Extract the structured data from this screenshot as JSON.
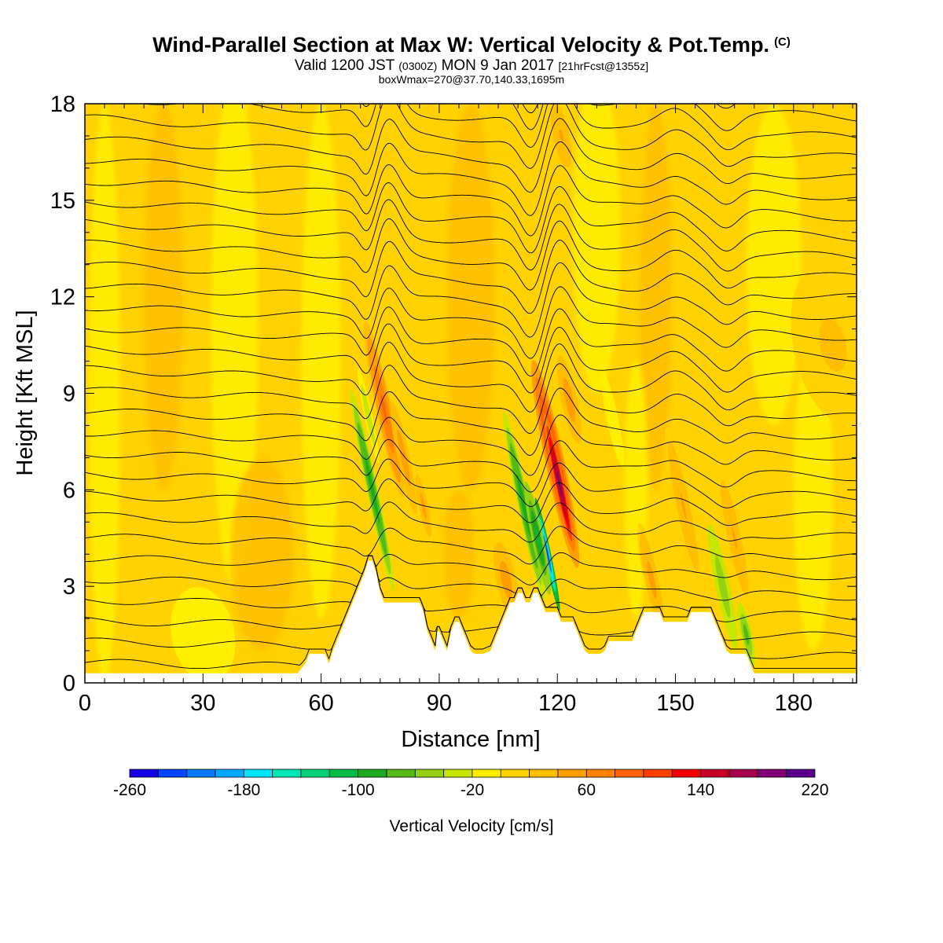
{
  "header": {
    "title": "Wind-Parallel Section at Max W: Vertical Velocity & Pot.Temp.",
    "copyright": "(C)",
    "subtitle_a": "Valid 1200 JST",
    "subtitle_b": "(0300Z)",
    "subtitle_c": "MON 9 Jan 2017",
    "subtitle_d": "[21hrFcst@1355z]",
    "subtitle_line2": "boxWmax=270@37.70,140.33,1695m"
  },
  "chart_data": {
    "type": "heatmap",
    "title": "Wind-Parallel Section at Max W: Vertical Velocity & Pot.Temp.",
    "xlabel": "Distance [nm]",
    "ylabel": "Height [Kft MSL]",
    "xlim": [
      0,
      196
    ],
    "ylim": [
      0,
      18
    ],
    "x_ticks": [
      0,
      30,
      60,
      90,
      120,
      150,
      180
    ],
    "y_ticks": [
      0,
      3,
      6,
      9,
      12,
      15,
      18
    ],
    "colorbar": {
      "label": "Vertical Velocity [cm/s]",
      "tick_labels": [
        "-260",
        "-180",
        "-100",
        "-20",
        "60",
        "140",
        "220"
      ],
      "tick_values": [
        -260,
        -180,
        -100,
        -20,
        60,
        140,
        220
      ],
      "min": -260,
      "max": 220,
      "step": 20,
      "colors": [
        "#1900e6",
        "#0046ff",
        "#0078ff",
        "#00aaff",
        "#00e6ff",
        "#00e6b4",
        "#00d278",
        "#00bb46",
        "#1eaa1e",
        "#55bb14",
        "#96d214",
        "#c8e600",
        "#fff000",
        "#ffd200",
        "#ffbe00",
        "#ffa000",
        "#ff8200",
        "#ff6400",
        "#ff3c00",
        "#f00000",
        "#c80028",
        "#aa0050",
        "#820078",
        "#5a008c"
      ]
    },
    "terrain_profile": [
      [
        0,
        0.3
      ],
      [
        48,
        0.3
      ],
      [
        54,
        0.3
      ],
      [
        56,
        0.6
      ],
      [
        57,
        0.9
      ],
      [
        61,
        0.9
      ],
      [
        62,
        0.6
      ],
      [
        63,
        1.0
      ],
      [
        64,
        1.3
      ],
      [
        65,
        1.6
      ],
      [
        66,
        1.9
      ],
      [
        67,
        2.2
      ],
      [
        68,
        2.5
      ],
      [
        69,
        2.8
      ],
      [
        70,
        3.1
      ],
      [
        71,
        3.4
      ],
      [
        72,
        3.8
      ],
      [
        73,
        3.8
      ],
      [
        74,
        3.4
      ],
      [
        75,
        2.8
      ],
      [
        76,
        2.5
      ],
      [
        85,
        2.5
      ],
      [
        86,
        2.2
      ],
      [
        87,
        1.6
      ],
      [
        88,
        1.3
      ],
      [
        89,
        1.0
      ],
      [
        89.5,
        1.6
      ],
      [
        90,
        1.6
      ],
      [
        91,
        1.3
      ],
      [
        92,
        1.0
      ],
      [
        92.5,
        1.3
      ],
      [
        93,
        1.6
      ],
      [
        94,
        1.9
      ],
      [
        95,
        1.9
      ],
      [
        96,
        1.6
      ],
      [
        97,
        1.3
      ],
      [
        98,
        1.0
      ],
      [
        99,
        0.9
      ],
      [
        100,
        0.9
      ],
      [
        101,
        0.9
      ],
      [
        103,
        1.0
      ],
      [
        104,
        1.3
      ],
      [
        105,
        1.6
      ],
      [
        106,
        1.9
      ],
      [
        107,
        2.2
      ],
      [
        108,
        2.5
      ],
      [
        109,
        2.5
      ],
      [
        110,
        2.8
      ],
      [
        111,
        2.8
      ],
      [
        112,
        2.5
      ],
      [
        113,
        2.5
      ],
      [
        114,
        2.8
      ],
      [
        115,
        2.8
      ],
      [
        116,
        2.5
      ],
      [
        117,
        2.2
      ],
      [
        120,
        2.2
      ],
      [
        121,
        1.9
      ],
      [
        124,
        1.9
      ],
      [
        125,
        1.6
      ],
      [
        126,
        1.3
      ],
      [
        127,
        1.0
      ],
      [
        128,
        0.9
      ],
      [
        131,
        0.9
      ],
      [
        132,
        1.0
      ],
      [
        133,
        1.3
      ],
      [
        139,
        1.3
      ],
      [
        140,
        1.6
      ],
      [
        141,
        1.9
      ],
      [
        142,
        2.2
      ],
      [
        146,
        2.2
      ],
      [
        147,
        1.9
      ],
      [
        153,
        1.9
      ],
      [
        154,
        2.2
      ],
      [
        159,
        2.2
      ],
      [
        160,
        1.9
      ],
      [
        161,
        1.6
      ],
      [
        162,
        1.3
      ],
      [
        163,
        1.0
      ],
      [
        164,
        0.9
      ],
      [
        168,
        0.9
      ],
      [
        169,
        0.6
      ],
      [
        170,
        0.3
      ],
      [
        196,
        0.3
      ]
    ],
    "updraft_regions": [
      {
        "x": 76,
        "y": 8.5,
        "rx": 2,
        "ry": 2.8,
        "w": 90
      },
      {
        "x": 81,
        "y": 7.0,
        "rx": 1.5,
        "ry": 1.8,
        "w": 55
      },
      {
        "x": 86,
        "y": 5.5,
        "rx": 1.4,
        "ry": 1.2,
        "w": 50
      },
      {
        "x": 107,
        "y": 3.2,
        "rx": 2.5,
        "ry": 1.2,
        "w": 55
      },
      {
        "x": 119.5,
        "y": 6.8,
        "rx": 2.4,
        "ry": 3.3,
        "w": 130
      },
      {
        "x": 120.5,
        "y": 6.2,
        "rx": 1.1,
        "ry": 2.2,
        "w": 200
      },
      {
        "x": 123,
        "y": 8.8,
        "rx": 2,
        "ry": 1.4,
        "w": 55
      },
      {
        "x": 144,
        "y": 3.2,
        "rx": 2,
        "ry": 1.8,
        "w": 50
      },
      {
        "x": 152,
        "y": 5.5,
        "rx": 2,
        "ry": 2.5,
        "w": 40
      },
      {
        "x": 165,
        "y": 4.5,
        "rx": 2,
        "ry": 2.2,
        "w": 40
      },
      {
        "x": 190,
        "y": 10.5,
        "rx": 10,
        "ry": 2.5,
        "w": 25
      },
      {
        "x": 121,
        "y": 17.0,
        "rx": 2.5,
        "ry": 1.2,
        "w": 40
      }
    ],
    "downdraft_regions": [
      {
        "x": 73,
        "y": 6.0,
        "rx": 1.4,
        "ry": 3.2,
        "w": -100
      },
      {
        "x": 72,
        "y": 8.3,
        "rx": 1.0,
        "ry": 1.5,
        "w": -40
      },
      {
        "x": 111.5,
        "y": 5.5,
        "rx": 1.5,
        "ry": 3.0,
        "w": -100
      },
      {
        "x": 117.5,
        "y": 4.0,
        "rx": 0.9,
        "ry": 1.8,
        "w": -230
      },
      {
        "x": 115,
        "y": 4.5,
        "rx": 1.5,
        "ry": 1.8,
        "w": -110
      },
      {
        "x": 162,
        "y": 3.0,
        "rx": 1.8,
        "ry": 2.0,
        "w": -60
      },
      {
        "x": 168,
        "y": 1.5,
        "rx": 1.5,
        "ry": 1.0,
        "w": -80
      },
      {
        "x": 134,
        "y": 8.2,
        "rx": 1.5,
        "ry": 1.5,
        "w": -20
      },
      {
        "x": 30,
        "y": 1.5,
        "rx": 8,
        "ry": 1.5,
        "w": -10
      }
    ],
    "isentrope_count": 30
  }
}
